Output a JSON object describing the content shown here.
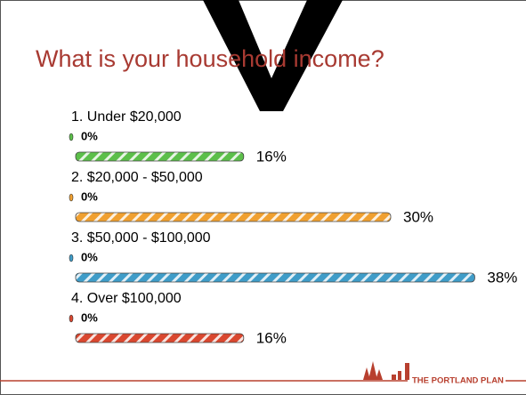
{
  "logo_text": "THE PORTLAND PLAN",
  "chart_data": {
    "type": "bar",
    "title": "What is your household income?",
    "categories": [
      "1.  Under $20,000",
      "2.  $20,000 - $50,000",
      "3.  $50,000 - $100,000",
      "4.  Over $100,000"
    ],
    "colors": [
      "#5cbf4a",
      "#f0a030",
      "#3f9cc8",
      "#d9472f"
    ],
    "series": [
      {
        "values": [
          0,
          0,
          0,
          0
        ],
        "value_labels": [
          "0%",
          "0%",
          "0%",
          "0%"
        ]
      },
      {
        "values": [
          16,
          30,
          38,
          16
        ],
        "value_labels": [
          "16%",
          "30%",
          "38%",
          "16%"
        ]
      }
    ]
  }
}
